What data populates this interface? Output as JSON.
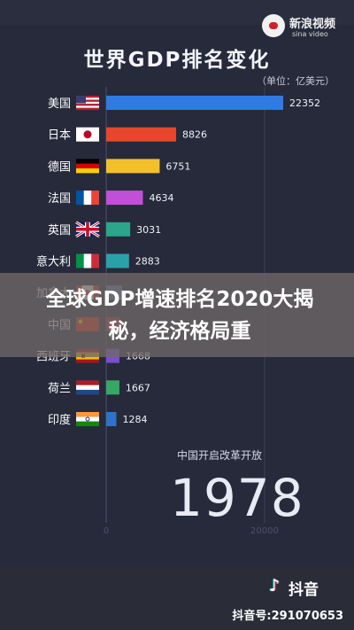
{
  "source_logo": {
    "name": "新浪视频",
    "sub": "sina video"
  },
  "overlay": {
    "headline": "全球GDP增速排名2020大揭秘，经济格局重"
  },
  "milestone": "中国开启改革开放",
  "year": "1978",
  "footer": {
    "app": "抖音",
    "account": "抖音号:291070653"
  },
  "colors": {
    "background": "#262a3b",
    "banner": "#706866"
  },
  "chart_data": {
    "type": "bar",
    "orientation": "horizontal",
    "title": "世界GDP排名变化",
    "unit": "（单位：亿美元）",
    "categories": [
      "美国",
      "日本",
      "德国",
      "法国",
      "英国",
      "意大利",
      "加拿大",
      "中国",
      "西班牙",
      "荷兰",
      "印度"
    ],
    "values": [
      22352,
      8826,
      6751,
      4634,
      3031,
      2883,
      2000,
      1750,
      1668,
      1667,
      1284
    ],
    "value_labels": [
      "22352",
      "8826",
      "6751",
      "4634",
      "3031",
      "2883",
      "",
      "",
      "1668",
      "1667",
      "1284"
    ],
    "bar_colors": [
      "#2f7be3",
      "#e7462c",
      "#f2c12a",
      "#c24fd8",
      "#2ba58c",
      "#2aa1a8",
      "#5a78b5",
      "#b0303a",
      "#7a4fc8",
      "#36a864",
      "#2f72c8"
    ],
    "flags": [
      "us-flag",
      "japan-flag",
      "germany-flag",
      "france-flag",
      "uk-flag",
      "italy-flag",
      "canada-flag",
      "china-flag",
      "spain-flag",
      "netherlands-flag",
      "india-flag"
    ],
    "x_ticks": [
      "0",
      "20000"
    ],
    "x_range": [
      0,
      22352
    ],
    "grid": false,
    "legend": "none"
  }
}
